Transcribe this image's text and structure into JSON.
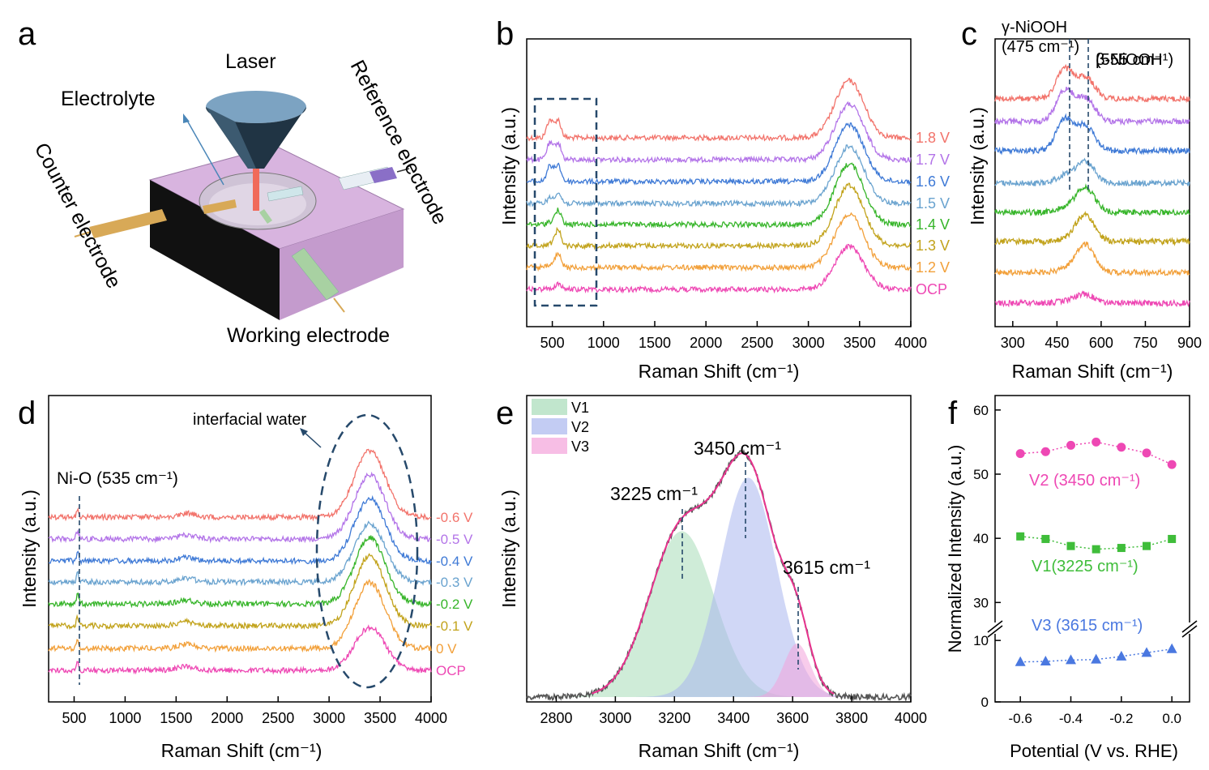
{
  "figure": {
    "panel_letters": [
      "a",
      "b",
      "c",
      "d",
      "e",
      "f"
    ]
  },
  "panel_a": {
    "labels": {
      "laser": "Laser",
      "electrolyte": "Electrolyte",
      "reference": "Reference electrode",
      "counter": "Counter electrode",
      "working": "Working electrode"
    },
    "colors": {
      "box_top": "#d9b3e0",
      "box_side": "#c79ad0",
      "box_dark": "#111111",
      "cone": "#6f93b0",
      "rod_counter": "#d7a84e",
      "rod_ref": "#8a6fc7",
      "rod_working": "#a5cfa0"
    }
  },
  "chart_data": [
    {
      "panel": "b",
      "type": "line",
      "xlabel": "Raman Shift (cm⁻¹)",
      "ylabel": "Intensity (a.u.)",
      "xlim": [
        250,
        4000
      ],
      "xticks": [
        500,
        1000,
        1500,
        2000,
        2500,
        3000,
        3500,
        4000
      ],
      "series": [
        {
          "name": "1.8 V",
          "color": "#f2736b"
        },
        {
          "name": "1.7 V",
          "color": "#b374e8"
        },
        {
          "name": "1.6 V",
          "color": "#3f7ad6"
        },
        {
          "name": "1.5 V",
          "color": "#6aa3cf"
        },
        {
          "name": "1.4 V",
          "color": "#37b52a"
        },
        {
          "name": "1.3 V",
          "color": "#c2a31c"
        },
        {
          "name": "1.2 V",
          "color": "#f2a03a"
        },
        {
          "name": "OCP",
          "color": "#ee48b4"
        }
      ],
      "peaks": [
        {
          "center": 475,
          "width": 30
        },
        {
          "center": 555,
          "width": 30
        },
        {
          "center": 3400,
          "width": 140
        }
      ],
      "peak_heights": [
        [
          1.0,
          1.0,
          3.2
        ],
        [
          0.9,
          0.95,
          3.1
        ],
        [
          0.85,
          0.95,
          3.2
        ],
        [
          0.3,
          0.6,
          3.2
        ],
        [
          0.15,
          0.8,
          3.4
        ],
        [
          0.1,
          0.9,
          3.4
        ],
        [
          0.1,
          0.75,
          3.0
        ],
        [
          0.05,
          0.3,
          2.4
        ]
      ],
      "annotation": "dashed-box 300-900 cm⁻¹"
    },
    {
      "panel": "c",
      "type": "line",
      "xlabel": "Raman Shift (cm⁻¹)",
      "ylabel": "Intensity (a.u.)",
      "xlim": [
        240,
        900
      ],
      "xticks": [
        300,
        450,
        600,
        750,
        900
      ],
      "annotations": [
        {
          "text": "γ-NiOOH",
          "sub": "(475 cm⁻¹)",
          "x": 475
        },
        {
          "text": "β-NiOOH",
          "sub": "(555 cm⁻¹)",
          "x": 555
        }
      ],
      "series_colors": [
        "#f2736b",
        "#b374e8",
        "#3f7ad6",
        "#6aa3cf",
        "#37b52a",
        "#c2a31c",
        "#f2a03a",
        "#ee48b4"
      ],
      "peak_heights": [
        [
          1.6,
          1.2
        ],
        [
          1.7,
          1.3
        ],
        [
          1.7,
          1.4
        ],
        [
          0.4,
          1.2
        ],
        [
          0.2,
          1.4
        ],
        [
          0.1,
          1.5
        ],
        [
          0.1,
          1.6
        ],
        [
          0.1,
          0.5
        ]
      ]
    },
    {
      "panel": "d",
      "type": "line",
      "xlabel": "Raman Shift (cm⁻¹)",
      "ylabel": "Intensity (a.u.)",
      "xlim": [
        250,
        4000
      ],
      "xticks": [
        500,
        1000,
        1500,
        2000,
        2500,
        3000,
        3500,
        4000
      ],
      "annotations": [
        {
          "text": "Ni-O (535 cm⁻¹)",
          "x": 535
        },
        {
          "text": "interfacial water"
        }
      ],
      "series": [
        {
          "name": "-0.6 V",
          "color": "#f2736b"
        },
        {
          "name": "-0.5 V",
          "color": "#b374e8"
        },
        {
          "name": "-0.4 V",
          "color": "#3f7ad6"
        },
        {
          "name": "-0.3 V",
          "color": "#6aa3cf"
        },
        {
          "name": "-0.2 V",
          "color": "#37b52a"
        },
        {
          "name": "-0.1 V",
          "color": "#c2a31c"
        },
        {
          "name": "0 V",
          "color": "#f2a03a"
        },
        {
          "name": "OCP",
          "color": "#ee48b4"
        }
      ],
      "water_heights": [
        3.4,
        3.3,
        3.2,
        3.0,
        3.4,
        3.6,
        3.4,
        2.2
      ]
    },
    {
      "panel": "e",
      "type": "area",
      "xlabel": "Raman Shift (cm⁻¹)",
      "ylabel": "Intensity (a.u.)",
      "xlim": [
        2700,
        4000
      ],
      "xticks": [
        2800,
        3000,
        3200,
        3400,
        3600,
        3800,
        4000
      ],
      "components": [
        {
          "name": "V1",
          "center": 3225,
          "sigma": 110,
          "amplitude": 0.62,
          "color": "#a7dcb8"
        },
        {
          "name": "V2",
          "center": 3450,
          "sigma": 95,
          "amplitude": 0.82,
          "color": "#aab6ee"
        },
        {
          "name": "V3",
          "center": 3615,
          "sigma": 45,
          "amplitude": 0.2,
          "color": "#f3a3da"
        }
      ],
      "annotations": [
        "3225 cm⁻¹",
        "3450 cm⁻¹",
        "3615 cm⁻¹"
      ],
      "fit_color": "#e8338e",
      "raw_color": "#555555"
    },
    {
      "panel": "f",
      "type": "scatter",
      "xlabel": "Potential (V vs. RHE)",
      "ylabel": "Normalized Intensity (a.u.)",
      "xlim": [
        -0.7,
        0.07
      ],
      "xticks": [
        -0.6,
        -0.4,
        -0.2,
        0.0
      ],
      "yticks": [
        0,
        10,
        30,
        40,
        50,
        60
      ],
      "axis_break": [
        12,
        26
      ],
      "x": [
        -0.6,
        -0.5,
        -0.4,
        -0.3,
        -0.2,
        -0.1,
        0.0
      ],
      "series": [
        {
          "name": "V2 (3450 cm⁻¹)",
          "values": [
            53.2,
            53.5,
            54.5,
            55.0,
            54.2,
            53.3,
            51.5
          ],
          "color": "#ee48b4",
          "marker": "circle"
        },
        {
          "name": "V1(3225 cm⁻¹)",
          "values": [
            40.3,
            39.9,
            38.8,
            38.3,
            38.5,
            38.8,
            39.9
          ],
          "color": "#3fbd3a",
          "marker": "square"
        },
        {
          "name": "V3 (3615 cm⁻¹)",
          "values": [
            6.5,
            6.6,
            6.8,
            6.9,
            7.4,
            8.0,
            8.6
          ],
          "color": "#4a78e0",
          "marker": "triangle"
        }
      ]
    }
  ]
}
